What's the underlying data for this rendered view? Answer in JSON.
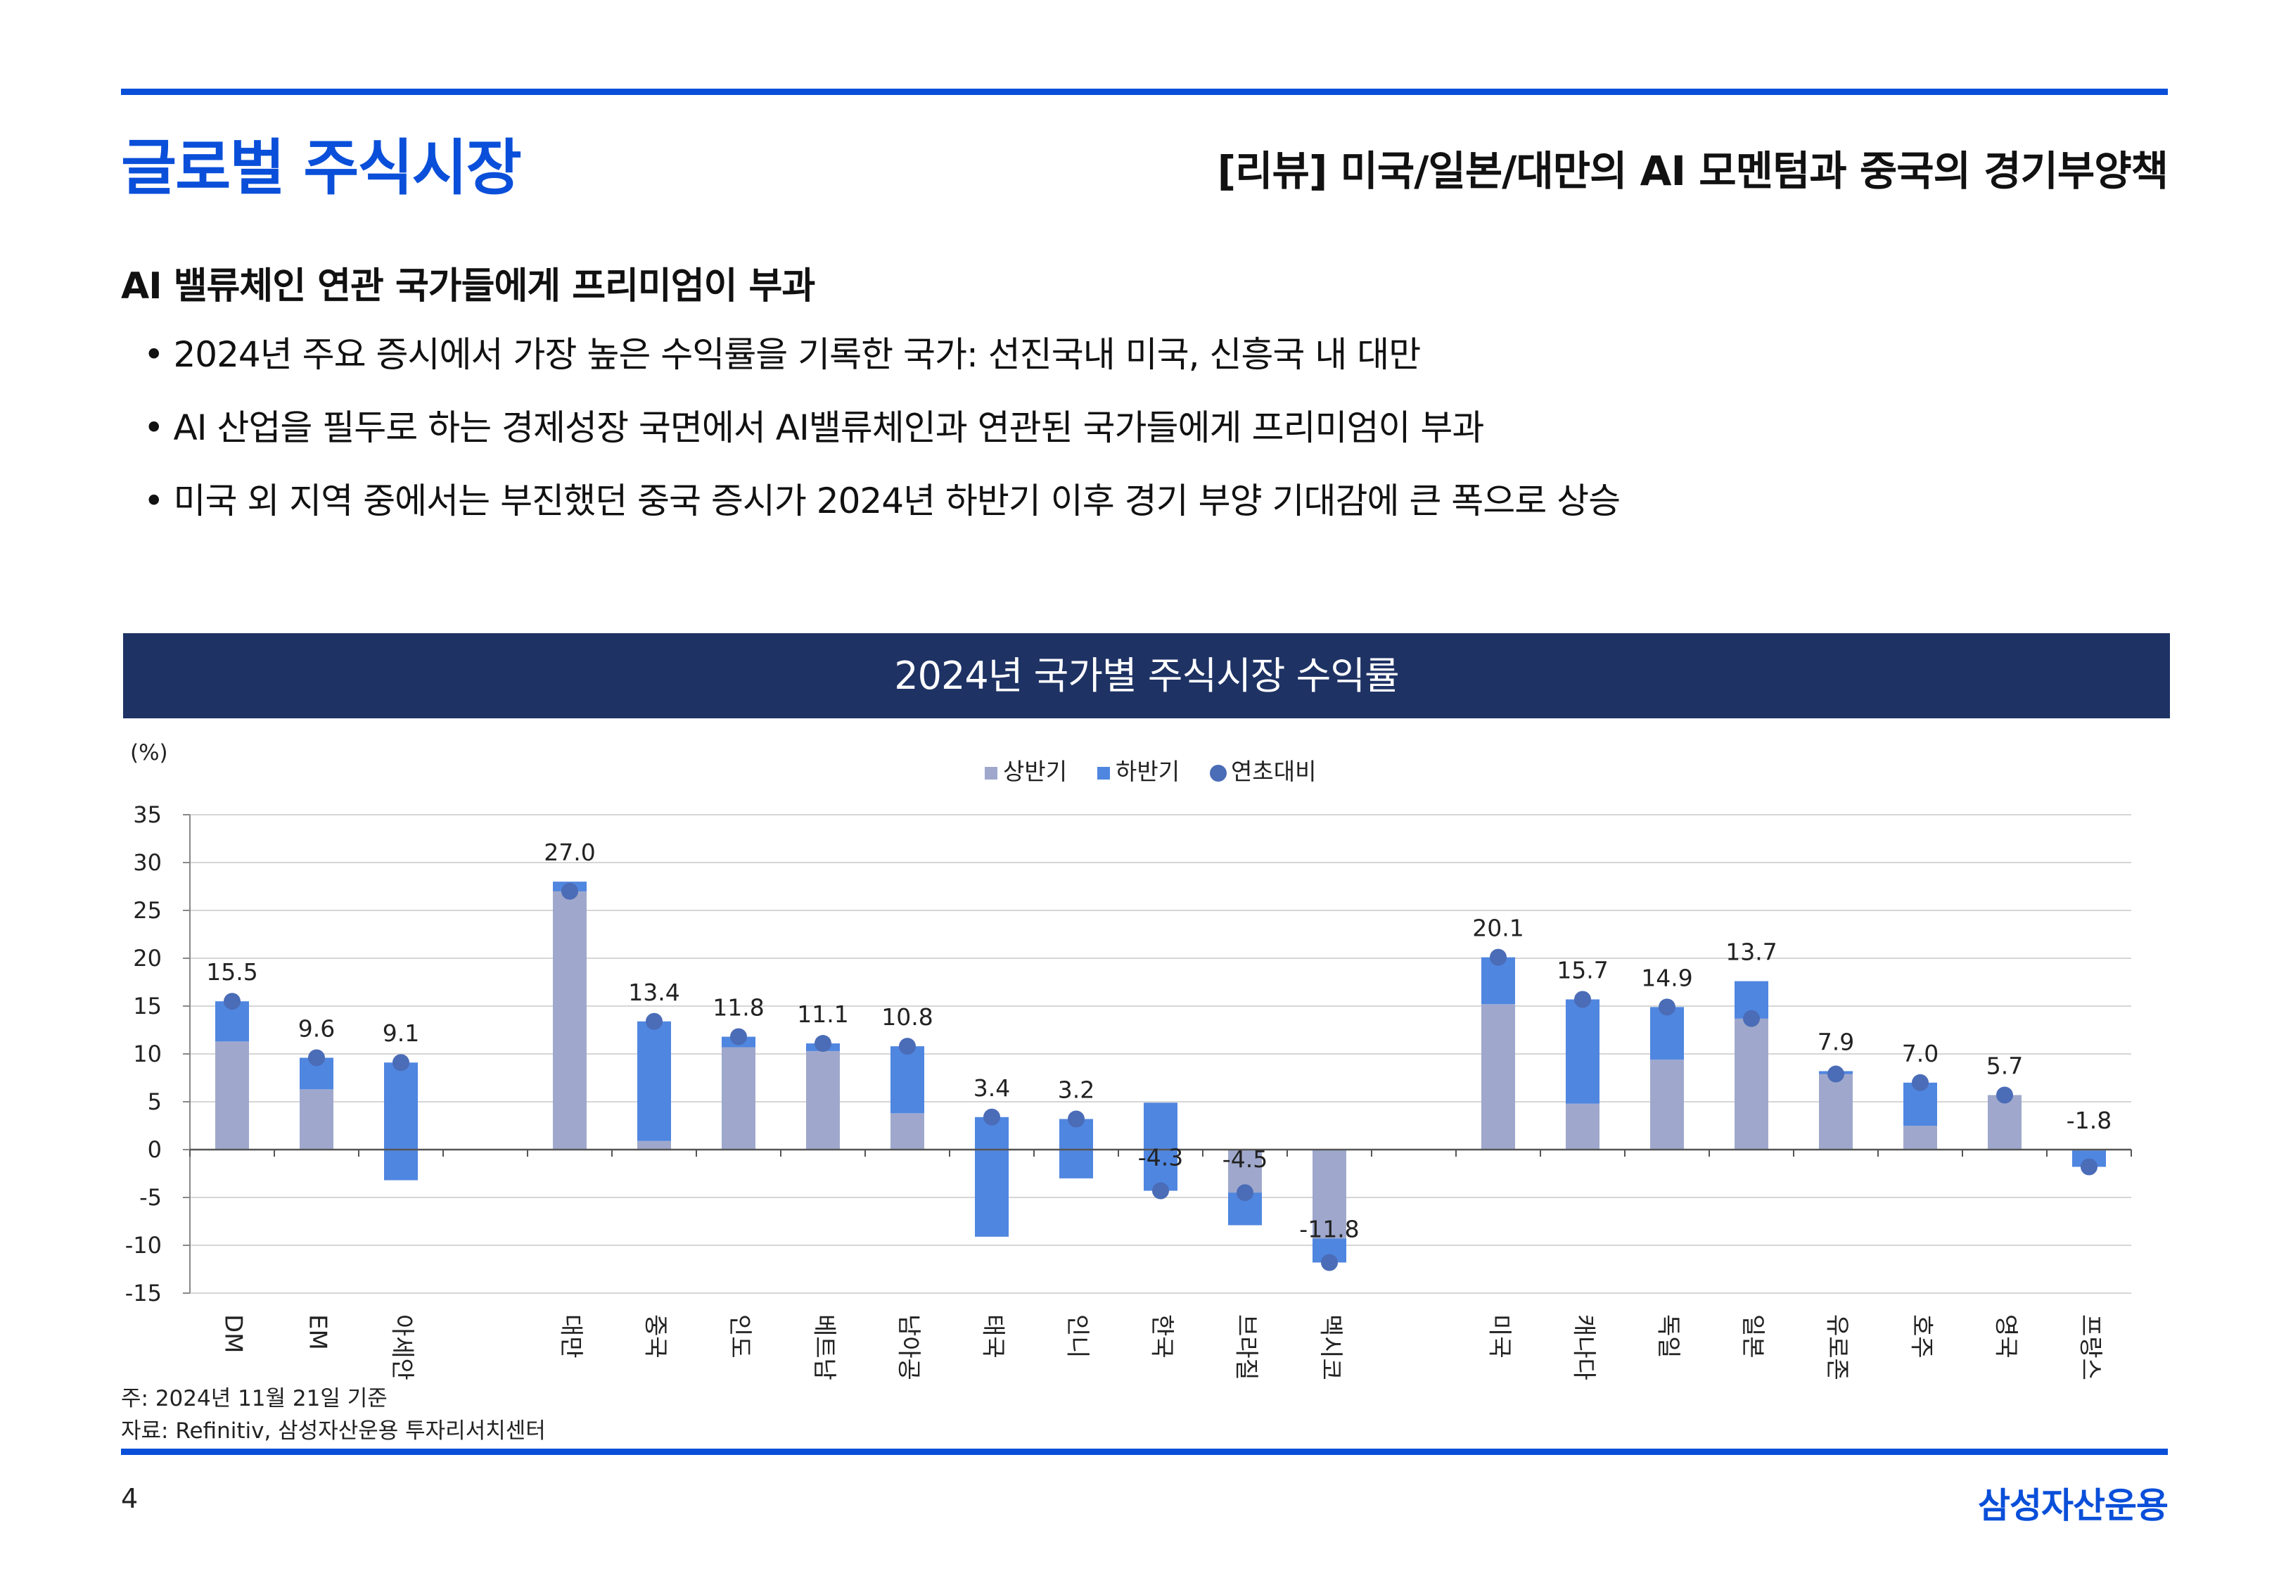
{
  "header": {
    "section_title": "글로벌 주식시장",
    "subtitle": "[리뷰] 미국/일본/대만의 AI 모멘텀과 중국의 경기부양책"
  },
  "content": {
    "headline": "AI 밸류체인 연관 국가들에게 프리미엄이 부과",
    "bullets": [
      "2024년 주요 증시에서 가장 높은 수익률을 기록한 국가: 선진국내 미국, 신흥국 내 대만",
      "AI 산업을 필두로 하는 경제성장 국면에서 AI밸류체인과 연관된 국가들에게 프리미엄이 부과",
      "미국 외 지역 중에서는 부진했던 중국 증시가 2024년 하반기 이후 경기 부양 기대감에 큰 폭으로 상승"
    ]
  },
  "chart_banner": "2024년 국가별 주식시장 수익률",
  "chart_data": {
    "type": "bar",
    "stacked": true,
    "categories": [
      "DM",
      "EM",
      "아세안",
      "",
      "대만",
      "중국",
      "인도",
      "베트남",
      "남아공",
      "태국",
      "인니",
      "한국",
      "브라질",
      "멕시코",
      "",
      "미국",
      "캐나다",
      "독일",
      "일본",
      "유로존",
      "호주",
      "영국",
      "프랑스"
    ],
    "series": [
      {
        "name": "상반기",
        "kind": "bar",
        "color": "#9fa8cc",
        "values": [
          11.3,
          6.3,
          -3.2,
          null,
          28.0,
          0.9,
          10.7,
          10.3,
          3.8,
          -9.1,
          -3.0,
          4.9,
          -7.9,
          -9.3,
          null,
          15.2,
          4.8,
          9.4,
          17.6,
          8.2,
          2.5,
          5.7,
          -0.1
        ]
      },
      {
        "name": "하반기",
        "kind": "bar",
        "color": "#4f86e0",
        "values": [
          4.2,
          3.3,
          12.3,
          null,
          -1.0,
          12.5,
          1.1,
          0.8,
          7.0,
          12.5,
          6.2,
          -9.2,
          3.4,
          -2.5,
          null,
          4.9,
          10.9,
          5.5,
          -3.9,
          -0.3,
          4.5,
          0.0,
          -1.7
        ]
      },
      {
        "name": "연초대비",
        "kind": "point",
        "color": "#4b6cb7",
        "values": [
          15.5,
          9.6,
          9.1,
          null,
          27.0,
          13.4,
          11.8,
          11.1,
          10.8,
          3.4,
          3.2,
          -4.3,
          -4.5,
          -11.8,
          null,
          20.1,
          15.7,
          14.9,
          13.7,
          7.9,
          7.0,
          5.7,
          -1.8
        ]
      }
    ],
    "data_labels": [
      "15.5",
      "9.6",
      "9.1",
      "",
      "27.0",
      "13.4",
      "11.8",
      "11.1",
      "10.8",
      "3.4",
      "3.2",
      "-4.3",
      "-4.5",
      "-11.8",
      "",
      "20.1",
      "15.7",
      "14.9",
      "13.7",
      "7.9",
      "7.0",
      "5.7",
      "-1.8"
    ],
    "ylabel": "(%)",
    "ylim": [
      -15,
      35
    ],
    "yticks": [
      35,
      30,
      25,
      20,
      15,
      10,
      5,
      0,
      -5,
      -10,
      -15
    ],
    "grid": true,
    "legend_position": "top-center"
  },
  "footnotes": {
    "note": "주: 2024년 11월 21일 기준",
    "source": "자료: Refinitiv, 삼성자산운용 투자리서치센터"
  },
  "footer": {
    "page_number": "4",
    "brand": "삼성자산운용"
  }
}
